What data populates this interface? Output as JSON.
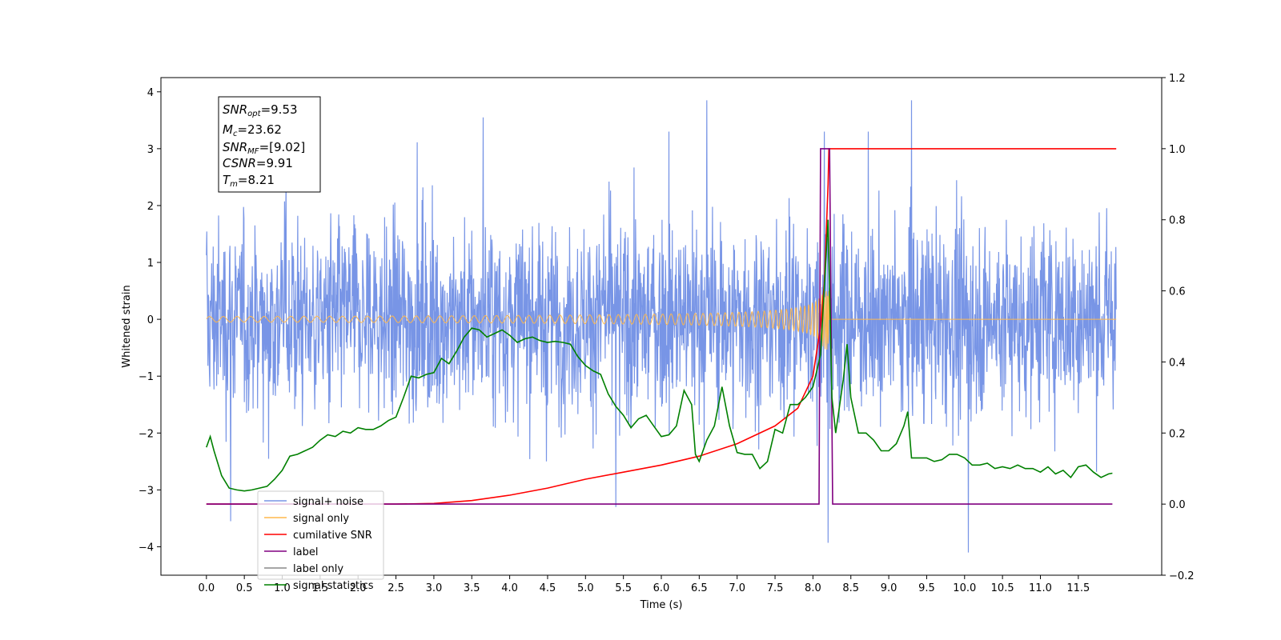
{
  "chart_data": {
    "type": "line",
    "xlabel": "Time (s)",
    "ylabel": "Whitened strain",
    "xlim": [
      -0.6,
      12.6
    ],
    "ylim_left": [
      -4.5,
      4.25
    ],
    "ylim_right": [
      -0.2,
      1.2
    ],
    "x_ticks": [
      0.0,
      0.5,
      1.0,
      1.5,
      2.0,
      2.5,
      3.0,
      3.5,
      4.0,
      4.5,
      5.0,
      5.5,
      6.0,
      6.5,
      7.0,
      7.5,
      8.0,
      8.5,
      9.0,
      9.5,
      10.0,
      10.5,
      11.0,
      11.5
    ],
    "x_tick_labels": [
      "0.0",
      "0.5",
      "1.0",
      "1.5",
      "2.0",
      "2.5",
      "3.0",
      "3.5",
      "4.0",
      "4.5",
      "5.0",
      "5.5",
      "6.0",
      "6.5",
      "7.0",
      "7.5",
      "8.0",
      "8.5",
      "9.0",
      "9.5",
      "10.0",
      "10.5",
      "11.0",
      "11.5"
    ],
    "y_left_ticks": [
      4,
      3,
      2,
      1,
      0,
      -1,
      -2,
      -3,
      -4
    ],
    "y_left_tick_labels": [
      "4",
      "3",
      "2",
      "1",
      "0",
      "−1",
      "−2",
      "−3",
      "−4"
    ],
    "y_right_ticks": [
      1.2,
      1.0,
      0.8,
      0.6,
      0.4,
      0.2,
      0.0,
      -0.2
    ],
    "y_right_tick_labels": [
      "1.2",
      "1.0",
      "0.8",
      "0.6",
      "0.4",
      "0.2",
      "0.0",
      "−0.2"
    ],
    "grid": false,
    "legend_placement": "lower-left",
    "stats_box": {
      "snr_opt": {
        "main": "SNR",
        "sub": "opt",
        "value": "=9.53"
      },
      "mc": {
        "main": "M",
        "sub": "c",
        "value": "=23.62"
      },
      "snr_mf": {
        "main": "SNR",
        "sub": "MF",
        "value": "=[9.02]"
      },
      "csnr": {
        "main": "CSNR",
        "value": "=9.91"
      },
      "tm": {
        "main": "T",
        "sub": "m",
        "value": "=8.21"
      }
    },
    "series": [
      {
        "name": "signal+ noise",
        "color": "#7895e6",
        "axis": "left",
        "description_of_values": "noise band",
        "x_range": [
          0.0,
          12.0
        ],
        "typical_amplitude": 1.4,
        "extremes": [
          [
            0.32,
            -3.55
          ],
          [
            1.05,
            2.4
          ],
          [
            3.65,
            3.55
          ],
          [
            5.4,
            -3.3
          ],
          [
            6.1,
            3.3
          ],
          [
            8.2,
            -3.93
          ],
          [
            8.15,
            3.3
          ],
          [
            9.3,
            3.85
          ],
          [
            10.05,
            -4.1
          ],
          [
            6.6,
            3.85
          ]
        ]
      },
      {
        "name": "signal only",
        "color": "#ffb84d",
        "axis": "left",
        "chirp_start": 0.0,
        "chirp_end": 8.21,
        "peak_amplitude": 0.6
      },
      {
        "name": "cumilative SNR",
        "color": "#ff0000",
        "axis": "right",
        "points": [
          [
            0.0,
            0.0
          ],
          [
            2.5,
            0.0
          ],
          [
            3.0,
            0.002
          ],
          [
            3.5,
            0.01
          ],
          [
            4.0,
            0.025
          ],
          [
            4.5,
            0.045
          ],
          [
            5.0,
            0.07
          ],
          [
            5.5,
            0.09
          ],
          [
            6.0,
            0.11
          ],
          [
            6.5,
            0.135
          ],
          [
            7.0,
            0.17
          ],
          [
            7.5,
            0.22
          ],
          [
            7.8,
            0.27
          ],
          [
            8.0,
            0.36
          ],
          [
            8.1,
            0.5
          ],
          [
            8.15,
            0.62
          ],
          [
            8.2,
            0.9
          ],
          [
            8.21,
            1.0
          ],
          [
            12.0,
            1.0
          ]
        ]
      },
      {
        "name": "label",
        "color": "#800080",
        "axis": "right",
        "points": [
          [
            0.0,
            0.0
          ],
          [
            8.08,
            0.0
          ],
          [
            8.1,
            1.0
          ],
          [
            8.22,
            1.0
          ],
          [
            8.26,
            0.0
          ],
          [
            11.95,
            0.0
          ]
        ]
      },
      {
        "name": "label only",
        "color": "#888888",
        "axis": "right",
        "points": []
      },
      {
        "name": "signal statistics",
        "color": "#008000",
        "axis": "right",
        "points": [
          [
            0.0,
            0.16
          ],
          [
            0.05,
            0.19
          ],
          [
            0.1,
            0.15
          ],
          [
            0.2,
            0.08
          ],
          [
            0.3,
            0.045
          ],
          [
            0.4,
            0.04
          ],
          [
            0.5,
            0.037
          ],
          [
            0.6,
            0.04
          ],
          [
            0.7,
            0.045
          ],
          [
            0.8,
            0.05
          ],
          [
            0.9,
            0.07
          ],
          [
            1.0,
            0.095
          ],
          [
            1.1,
            0.135
          ],
          [
            1.2,
            0.14
          ],
          [
            1.3,
            0.15
          ],
          [
            1.4,
            0.16
          ],
          [
            1.5,
            0.18
          ],
          [
            1.6,
            0.195
          ],
          [
            1.7,
            0.19
          ],
          [
            1.8,
            0.205
          ],
          [
            1.9,
            0.2
          ],
          [
            2.0,
            0.215
          ],
          [
            2.1,
            0.21
          ],
          [
            2.2,
            0.21
          ],
          [
            2.3,
            0.22
          ],
          [
            2.4,
            0.235
          ],
          [
            2.5,
            0.245
          ],
          [
            2.6,
            0.3
          ],
          [
            2.7,
            0.36
          ],
          [
            2.8,
            0.355
          ],
          [
            2.9,
            0.365
          ],
          [
            3.0,
            0.37
          ],
          [
            3.1,
            0.41
          ],
          [
            3.2,
            0.395
          ],
          [
            3.3,
            0.43
          ],
          [
            3.4,
            0.47
          ],
          [
            3.5,
            0.495
          ],
          [
            3.6,
            0.49
          ],
          [
            3.7,
            0.47
          ],
          [
            3.8,
            0.48
          ],
          [
            3.9,
            0.49
          ],
          [
            4.0,
            0.475
          ],
          [
            4.1,
            0.455
          ],
          [
            4.2,
            0.465
          ],
          [
            4.3,
            0.47
          ],
          [
            4.4,
            0.46
          ],
          [
            4.5,
            0.455
          ],
          [
            4.6,
            0.458
          ],
          [
            4.7,
            0.455
          ],
          [
            4.8,
            0.45
          ],
          [
            4.9,
            0.415
          ],
          [
            5.0,
            0.39
          ],
          [
            5.1,
            0.375
          ],
          [
            5.2,
            0.365
          ],
          [
            5.3,
            0.31
          ],
          [
            5.4,
            0.275
          ],
          [
            5.5,
            0.25
          ],
          [
            5.6,
            0.215
          ],
          [
            5.7,
            0.24
          ],
          [
            5.8,
            0.25
          ],
          [
            5.9,
            0.22
          ],
          [
            6.0,
            0.19
          ],
          [
            6.1,
            0.195
          ],
          [
            6.2,
            0.22
          ],
          [
            6.3,
            0.32
          ],
          [
            6.4,
            0.28
          ],
          [
            6.45,
            0.14
          ],
          [
            6.5,
            0.12
          ],
          [
            6.6,
            0.18
          ],
          [
            6.7,
            0.22
          ],
          [
            6.8,
            0.33
          ],
          [
            6.9,
            0.22
          ],
          [
            7.0,
            0.145
          ],
          [
            7.1,
            0.14
          ],
          [
            7.2,
            0.14
          ],
          [
            7.3,
            0.1
          ],
          [
            7.4,
            0.12
          ],
          [
            7.5,
            0.21
          ],
          [
            7.6,
            0.2
          ],
          [
            7.7,
            0.28
          ],
          [
            7.8,
            0.28
          ],
          [
            7.9,
            0.3
          ],
          [
            8.0,
            0.33
          ],
          [
            8.1,
            0.42
          ],
          [
            8.2,
            0.8
          ],
          [
            8.25,
            0.3
          ],
          [
            8.3,
            0.2
          ],
          [
            8.4,
            0.35
          ],
          [
            8.45,
            0.45
          ],
          [
            8.5,
            0.3
          ],
          [
            8.6,
            0.2
          ],
          [
            8.7,
            0.2
          ],
          [
            8.8,
            0.18
          ],
          [
            8.9,
            0.15
          ],
          [
            9.0,
            0.15
          ],
          [
            9.1,
            0.17
          ],
          [
            9.2,
            0.22
          ],
          [
            9.25,
            0.26
          ],
          [
            9.3,
            0.13
          ],
          [
            9.4,
            0.13
          ],
          [
            9.5,
            0.13
          ],
          [
            9.6,
            0.12
          ],
          [
            9.7,
            0.125
          ],
          [
            9.8,
            0.14
          ],
          [
            9.9,
            0.14
          ],
          [
            10.0,
            0.13
          ],
          [
            10.1,
            0.11
          ],
          [
            10.2,
            0.11
          ],
          [
            10.3,
            0.115
          ],
          [
            10.4,
            0.1
          ],
          [
            10.5,
            0.105
          ],
          [
            10.6,
            0.1
          ],
          [
            10.7,
            0.11
          ],
          [
            10.8,
            0.1
          ],
          [
            10.9,
            0.1
          ],
          [
            11.0,
            0.09
          ],
          [
            11.1,
            0.105
          ],
          [
            11.2,
            0.085
          ],
          [
            11.3,
            0.095
          ],
          [
            11.4,
            0.075
          ],
          [
            11.5,
            0.105
          ],
          [
            11.6,
            0.11
          ],
          [
            11.7,
            0.09
          ],
          [
            11.8,
            0.075
          ],
          [
            11.9,
            0.085
          ],
          [
            11.95,
            0.087
          ]
        ]
      }
    ]
  }
}
